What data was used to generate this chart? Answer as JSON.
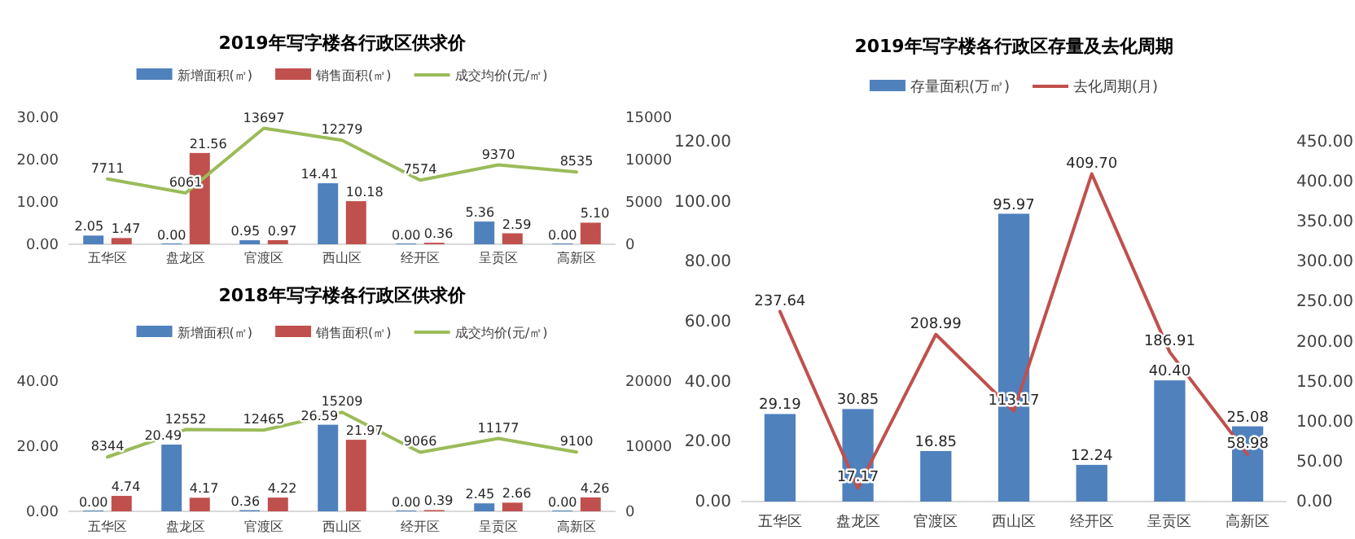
{
  "chart_data": [
    {
      "type": "bar",
      "title": "2019年写字楼各行政区供求价",
      "categories": [
        "五华区",
        "盘龙区",
        "官渡区",
        "西山区",
        "经开区",
        "呈贡区",
        "高新区"
      ],
      "legend": "top",
      "ylim": [
        0,
        30
      ],
      "yticks": [
        {
          "value": 0,
          "label": "0.00"
        },
        {
          "value": 10,
          "label": "10.00"
        },
        {
          "value": 20,
          "label": "20.00"
        },
        {
          "value": 30,
          "label": "30.00"
        }
      ],
      "y2lim": [
        0,
        15000
      ],
      "y2ticks": [
        0,
        5000,
        10000,
        15000
      ],
      "series": [
        {
          "name": "新增面积(㎡)",
          "color": "#4f81bd",
          "values": [
            2.05,
            0,
            0.95,
            14.41,
            0,
            5.36,
            0
          ],
          "value_labels": [
            "2.05",
            "0.00",
            "0.95",
            "14.41",
            "0.00",
            "5.36",
            "0.00"
          ]
        },
        {
          "name": "销售面积(㎡)",
          "color": "#c0504d",
          "values": [
            1.47,
            21.56,
            0.97,
            10.18,
            0.36,
            2.59,
            5.1
          ],
          "value_labels": [
            "1.47",
            "21.56",
            "0.97",
            "10.18",
            "0.36",
            "2.59",
            "5.10"
          ]
        },
        {
          "name": "成交均价(元/㎡)",
          "type": "line",
          "axis": "y2",
          "color": "#9bbb59",
          "values": [
            7711,
            6061,
            13697,
            12279,
            7574,
            9370,
            8535
          ],
          "value_labels": [
            "7711",
            "6061",
            "13697",
            "12279",
            "7574",
            "9370",
            "8535"
          ]
        }
      ]
    },
    {
      "type": "bar",
      "title": "2018年写字楼各行政区供求价",
      "categories": [
        "五华区",
        "盘龙区",
        "官渡区",
        "西山区",
        "经开区",
        "呈贡区",
        "高新区"
      ],
      "legend": "top",
      "ylim": [
        0,
        40
      ],
      "yticks": [
        {
          "value": 0,
          "label": "0.00"
        },
        {
          "value": 20,
          "label": "20.00"
        },
        {
          "value": 40,
          "label": "40.00"
        }
      ],
      "y2lim": [
        0,
        20000
      ],
      "y2ticks": [
        0,
        10000,
        20000
      ],
      "series": [
        {
          "name": "新增面积(㎡)",
          "color": "#4f81bd",
          "values": [
            0,
            20.49,
            0.36,
            26.59,
            0,
            2.45,
            0
          ],
          "value_labels": [
            "0.00",
            "20.49",
            "0.36",
            "26.59",
            "0.00",
            "2.45",
            "0.00"
          ]
        },
        {
          "name": "销售面积(㎡)",
          "color": "#c0504d",
          "values": [
            4.74,
            4.17,
            4.22,
            21.97,
            0.39,
            2.66,
            4.26
          ],
          "value_labels": [
            "4.74",
            "4.17",
            "4.22",
            "21.97",
            "0.39",
            "2.66",
            "4.26"
          ]
        },
        {
          "name": "成交均价(元/㎡)",
          "type": "line",
          "axis": "y2",
          "color": "#9bbb59",
          "values": [
            8344,
            12552,
            12465,
            15209,
            9066,
            11177,
            9100
          ],
          "value_labels": [
            "8344",
            "12552",
            "12465",
            "15209",
            "9066",
            "11177",
            "9100"
          ]
        }
      ]
    },
    {
      "type": "bar",
      "title": "2019年写字楼各行政区存量及去化周期",
      "categories": [
        "五华区",
        "盘龙区",
        "官渡区",
        "西山区",
        "经开区",
        "呈贡区",
        "高新区"
      ],
      "legend": "top",
      "ylim": [
        0,
        120
      ],
      "yticks": [
        {
          "value": 0,
          "label": "0.00"
        },
        {
          "value": 20,
          "label": "20.00"
        },
        {
          "value": 40,
          "label": "40.00"
        },
        {
          "value": 60,
          "label": "60.00"
        },
        {
          "value": 80,
          "label": "80.00"
        },
        {
          "value": 100,
          "label": "100.00"
        },
        {
          "value": 120,
          "label": "120.00"
        }
      ],
      "y2lim": [
        0,
        450
      ],
      "y2ticks": [
        {
          "value": 0,
          "label": "0.00"
        },
        {
          "value": 50,
          "label": "50.00"
        },
        {
          "value": 100,
          "label": "100.00"
        },
        {
          "value": 150,
          "label": "150.00"
        },
        {
          "value": 200,
          "label": "200.00"
        },
        {
          "value": 250,
          "label": "250.00"
        },
        {
          "value": 300,
          "label": "300.00"
        },
        {
          "value": 350,
          "label": "350.00"
        },
        {
          "value": 400,
          "label": "400.00"
        },
        {
          "value": 450,
          "label": "450.00"
        }
      ],
      "series": [
        {
          "name": "存量面积(万㎡)",
          "color": "#4f81bd",
          "values": [
            29.19,
            30.85,
            16.85,
            95.97,
            12.24,
            40.4,
            25.08
          ],
          "value_labels": [
            "29.19",
            "30.85",
            "16.85",
            "95.97",
            "12.24",
            "40.40",
            "25.08"
          ]
        },
        {
          "name": "去化周期(月)",
          "type": "line",
          "axis": "y2",
          "color": "#c0504d",
          "values": [
            237.64,
            17.17,
            208.99,
            113.17,
            409.7,
            186.91,
            58.98
          ],
          "value_labels": [
            "237.64",
            "17.17",
            "208.99",
            "113.17",
            "409.70",
            "186.91",
            "58.98"
          ]
        }
      ]
    }
  ]
}
